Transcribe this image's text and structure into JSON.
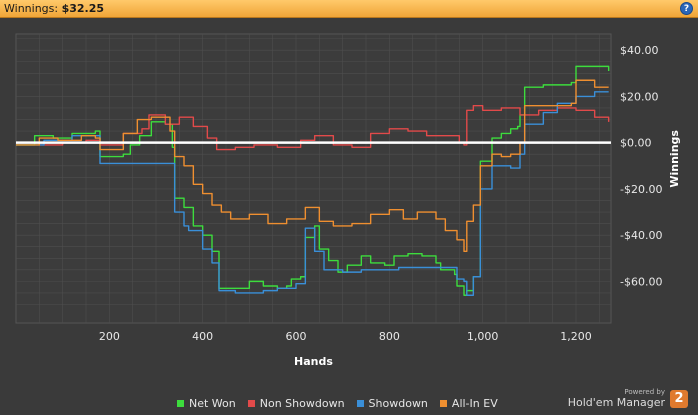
{
  "header": {
    "label": "Winnings:",
    "value": "$32.25",
    "help_icon": "?"
  },
  "colors": {
    "background": "#3a3a3a",
    "grid": "#4e4e4e",
    "zero_line": "#ffffff",
    "net_won": "#3ddc3d",
    "non_showdown": "#e24a4a",
    "showdown": "#3a8fd8",
    "allin_ev": "#ef8f30"
  },
  "chart_data": {
    "type": "line",
    "xlabel": "Hands",
    "ylabel": "Winnings",
    "xlim": [
      0,
      1275
    ],
    "ylim": [
      -78,
      47
    ],
    "x_ticks": [
      200,
      400,
      600,
      800,
      1000,
      1200
    ],
    "x_tick_labels": [
      "200",
      "400",
      "600",
      "800",
      "1,000",
      "1,200"
    ],
    "y_ticks": [
      40,
      20,
      0,
      -20,
      -40,
      -60
    ],
    "y_tick_labels": [
      "$40.00",
      "$20.00",
      "$0.00",
      "-$20.00",
      "-$40.00",
      "-$60.00"
    ],
    "series": [
      {
        "name": "Net Won",
        "color": "#3ddc3d",
        "points": [
          [
            0,
            -1
          ],
          [
            40,
            3
          ],
          [
            80,
            2
          ],
          [
            120,
            4
          ],
          [
            170,
            5
          ],
          [
            180,
            -6
          ],
          [
            230,
            -5
          ],
          [
            245,
            -1
          ],
          [
            265,
            3
          ],
          [
            290,
            9
          ],
          [
            320,
            8
          ],
          [
            335,
            -2
          ],
          [
            340,
            -24
          ],
          [
            360,
            -28
          ],
          [
            380,
            -36
          ],
          [
            400,
            -40
          ],
          [
            420,
            -47
          ],
          [
            435,
            -63
          ],
          [
            470,
            -63
          ],
          [
            500,
            -60
          ],
          [
            530,
            -62
          ],
          [
            560,
            -63
          ],
          [
            580,
            -62
          ],
          [
            590,
            -59
          ],
          [
            610,
            -58
          ],
          [
            620,
            -41
          ],
          [
            640,
            -36
          ],
          [
            650,
            -46
          ],
          [
            670,
            -51
          ],
          [
            690,
            -56
          ],
          [
            710,
            -53
          ],
          [
            740,
            -49
          ],
          [
            760,
            -52
          ],
          [
            790,
            -53
          ],
          [
            810,
            -49
          ],
          [
            840,
            -48
          ],
          [
            870,
            -49
          ],
          [
            900,
            -52
          ],
          [
            910,
            -55
          ],
          [
            940,
            -57
          ],
          [
            945,
            -62
          ],
          [
            960,
            -66
          ],
          [
            966,
            -64
          ],
          [
            980,
            -58
          ],
          [
            995,
            -8
          ],
          [
            1020,
            2
          ],
          [
            1040,
            4
          ],
          [
            1060,
            6
          ],
          [
            1075,
            7
          ],
          [
            1080,
            12
          ],
          [
            1090,
            24
          ],
          [
            1130,
            25
          ],
          [
            1170,
            25
          ],
          [
            1190,
            26
          ],
          [
            1200,
            33
          ],
          [
            1240,
            33
          ],
          [
            1270,
            31
          ]
        ]
      },
      {
        "name": "Non Showdown",
        "color": "#e24a4a",
        "points": [
          [
            0,
            0
          ],
          [
            50,
            -1
          ],
          [
            100,
            0
          ],
          [
            150,
            1
          ],
          [
            180,
            -1
          ],
          [
            230,
            4
          ],
          [
            270,
            6
          ],
          [
            285,
            12
          ],
          [
            320,
            8
          ],
          [
            340,
            8
          ],
          [
            350,
            11
          ],
          [
            380,
            7
          ],
          [
            410,
            2
          ],
          [
            430,
            -3
          ],
          [
            470,
            -2
          ],
          [
            510,
            -1
          ],
          [
            560,
            -2
          ],
          [
            610,
            1
          ],
          [
            640,
            3
          ],
          [
            680,
            -1
          ],
          [
            720,
            -2
          ],
          [
            760,
            4
          ],
          [
            800,
            6
          ],
          [
            840,
            5
          ],
          [
            880,
            3
          ],
          [
            920,
            3
          ],
          [
            950,
            0
          ],
          [
            960,
            -1
          ],
          [
            966,
            14
          ],
          [
            980,
            16
          ],
          [
            1000,
            14
          ],
          [
            1040,
            15
          ],
          [
            1080,
            12
          ],
          [
            1120,
            14
          ],
          [
            1160,
            15
          ],
          [
            1200,
            14
          ],
          [
            1240,
            11
          ],
          [
            1270,
            9
          ]
        ]
      },
      {
        "name": "Showdown",
        "color": "#3a8fd8",
        "points": [
          [
            0,
            -1
          ],
          [
            60,
            1
          ],
          [
            120,
            3
          ],
          [
            170,
            3
          ],
          [
            180,
            -9
          ],
          [
            230,
            -9
          ],
          [
            240,
            -9
          ],
          [
            260,
            -9
          ],
          [
            335,
            -9
          ],
          [
            340,
            -30
          ],
          [
            360,
            -36
          ],
          [
            370,
            -38
          ],
          [
            400,
            -46
          ],
          [
            420,
            -52
          ],
          [
            435,
            -64
          ],
          [
            470,
            -65
          ],
          [
            500,
            -65
          ],
          [
            530,
            -64
          ],
          [
            560,
            -63
          ],
          [
            580,
            -63
          ],
          [
            600,
            -61
          ],
          [
            620,
            -37
          ],
          [
            640,
            -47
          ],
          [
            660,
            -55
          ],
          [
            700,
            -56
          ],
          [
            740,
            -55
          ],
          [
            780,
            -55
          ],
          [
            820,
            -54
          ],
          [
            860,
            -54
          ],
          [
            900,
            -54
          ],
          [
            945,
            -59
          ],
          [
            960,
            -60
          ],
          [
            966,
            -66
          ],
          [
            980,
            -58
          ],
          [
            995,
            -20
          ],
          [
            1020,
            -10
          ],
          [
            1060,
            -11
          ],
          [
            1080,
            -5
          ],
          [
            1090,
            8
          ],
          [
            1130,
            13
          ],
          [
            1160,
            17
          ],
          [
            1190,
            17
          ],
          [
            1200,
            20
          ],
          [
            1240,
            22
          ],
          [
            1270,
            22
          ]
        ]
      },
      {
        "name": "All-In EV",
        "color": "#ef8f30",
        "points": [
          [
            0,
            -1
          ],
          [
            50,
            2
          ],
          [
            90,
            1
          ],
          [
            140,
            3
          ],
          [
            170,
            2
          ],
          [
            180,
            -3
          ],
          [
            230,
            4
          ],
          [
            260,
            10
          ],
          [
            290,
            11
          ],
          [
            330,
            5
          ],
          [
            340,
            -6
          ],
          [
            360,
            -10
          ],
          [
            380,
            -18
          ],
          [
            400,
            -22
          ],
          [
            420,
            -27
          ],
          [
            440,
            -30
          ],
          [
            460,
            -33
          ],
          [
            500,
            -31
          ],
          [
            540,
            -35
          ],
          [
            580,
            -33
          ],
          [
            620,
            -28
          ],
          [
            650,
            -34
          ],
          [
            680,
            -36
          ],
          [
            720,
            -35
          ],
          [
            760,
            -31
          ],
          [
            800,
            -29
          ],
          [
            830,
            -33
          ],
          [
            860,
            -30
          ],
          [
            900,
            -33
          ],
          [
            920,
            -38
          ],
          [
            945,
            -42
          ],
          [
            960,
            -47
          ],
          [
            966,
            -34
          ],
          [
            980,
            -27
          ],
          [
            995,
            -10
          ],
          [
            1020,
            -5
          ],
          [
            1040,
            -6
          ],
          [
            1060,
            -5
          ],
          [
            1080,
            0
          ],
          [
            1090,
            16
          ],
          [
            1130,
            16
          ],
          [
            1170,
            16
          ],
          [
            1190,
            17
          ],
          [
            1200,
            27
          ],
          [
            1240,
            24
          ],
          [
            1270,
            24
          ]
        ]
      }
    ],
    "legend_position": "bottom-center",
    "grid": true
  },
  "legend": [
    {
      "label": "Net Won",
      "color": "#3ddc3d"
    },
    {
      "label": "Non Showdown",
      "color": "#e24a4a"
    },
    {
      "label": "Showdown",
      "color": "#3a8fd8"
    },
    {
      "label": "All-In EV",
      "color": "#ef8f30"
    }
  ],
  "branding": {
    "powered_by": "Powered by",
    "product": "Hold'em Manager",
    "version_mark": "2"
  }
}
